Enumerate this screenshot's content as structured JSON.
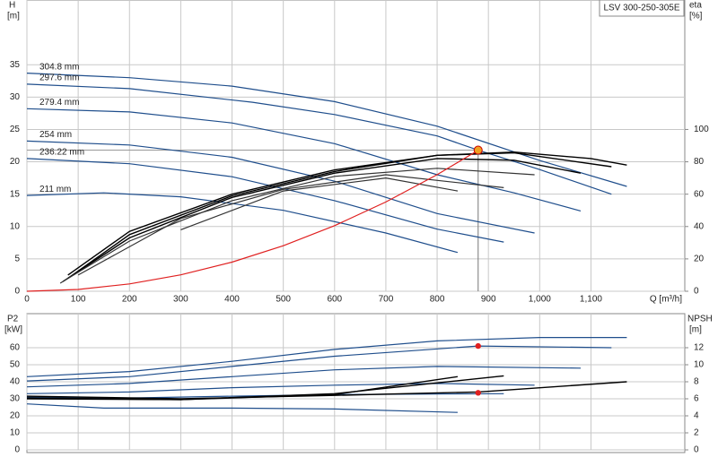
{
  "chart_data": [
    {
      "type": "line",
      "title": "LSV 300-250-305E",
      "ylabel": "H",
      "yunit": "[m]",
      "y2label": "eta",
      "y2unit": "[%]",
      "xlabel": "Q [m³/h]",
      "xlim": [
        0,
        1283
      ],
      "ylim": [
        0,
        45
      ],
      "y2lim": [
        0,
        180
      ],
      "grid": true,
      "xticks": [
        0,
        100,
        200,
        300,
        400,
        500,
        600,
        700,
        800,
        900,
        {
          "value": 1000,
          "label": "1,000"
        },
        {
          "value": 1100,
          "label": "1,100"
        }
      ],
      "yticks": [
        0,
        5,
        10,
        15,
        20,
        25,
        30,
        35
      ],
      "y2ticks": [
        0,
        20,
        40,
        60,
        80,
        100
      ],
      "series": [
        {
          "name": "304.8 mm",
          "color": "#1f4e8c",
          "x": [
            0,
            200,
            400,
            600,
            800,
            1000,
            1170
          ],
          "values": [
            33.7,
            33,
            31.7,
            29.3,
            25.5,
            20.2,
            16.2
          ]
        },
        {
          "name": "297.6 mm",
          "color": "#1f4e8c",
          "x": [
            0,
            200,
            440,
            600,
            800,
            880,
            1000,
            1140
          ],
          "values": [
            32,
            31.3,
            29.2,
            27.3,
            24,
            21.8,
            18.8,
            15
          ]
        },
        {
          "name": "279.4 mm",
          "color": "#1f4e8c",
          "x": [
            0,
            200,
            400,
            600,
            800,
            950,
            1080
          ],
          "values": [
            28.2,
            27.7,
            26,
            22.8,
            18,
            15.2,
            12.4
          ]
        },
        {
          "name": "254 mm",
          "color": "#1f4e8c",
          "x": [
            0,
            200,
            400,
            600,
            800,
            990
          ],
          "values": [
            23.2,
            22.6,
            20.7,
            17,
            12,
            9
          ]
        },
        {
          "name": "236.22 mm",
          "color": "#1f4e8c",
          "x": [
            0,
            200,
            400,
            600,
            800,
            930
          ],
          "values": [
            20.5,
            19.7,
            17.7,
            14,
            9.6,
            7.6
          ]
        },
        {
          "name": "211 mm",
          "color": "#1f4e8c",
          "x": [
            0,
            150,
            300,
            500,
            700,
            840
          ],
          "values": [
            14.8,
            15.2,
            14.6,
            12.5,
            9,
            6
          ]
        },
        {
          "color": "#000000",
          "axis": "y2",
          "x": [
            80,
            200,
            400,
            600,
            800,
            950,
            1100,
            1170
          ],
          "values": [
            10,
            37,
            60,
            75,
            84,
            86,
            82,
            78
          ]
        },
        {
          "color": "#000000",
          "axis": "y2",
          "x": [
            80,
            200,
            400,
            600,
            800,
            950,
            1140
          ],
          "values": [
            8,
            35,
            59,
            74,
            84,
            85.5,
            77
          ]
        },
        {
          "color": "#000000",
          "axis": "y2",
          "x": [
            70,
            200,
            400,
            600,
            800,
            950,
            1080
          ],
          "values": [
            6,
            33,
            58,
            73,
            82,
            81,
            73
          ]
        },
        {
          "color": "#333333",
          "axis": "y2",
          "x": [
            65,
            200,
            400,
            600,
            800,
            990
          ],
          "values": [
            5,
            31,
            56,
            71,
            76,
            72
          ]
        },
        {
          "color": "#333333",
          "axis": "y2",
          "x": [
            100,
            300,
            500,
            700,
            930
          ],
          "values": [
            10,
            45,
            63,
            72,
            64
          ]
        },
        {
          "color": "#333333",
          "axis": "y2",
          "x": [
            300,
            500,
            700,
            840
          ],
          "values": [
            38,
            62,
            70,
            62
          ]
        },
        {
          "color": "#e02020",
          "x": [
            0,
            100,
            200,
            300,
            400,
            500,
            600,
            700,
            800,
            880
          ],
          "values": [
            0,
            0.28,
            1.13,
            2.53,
            4.5,
            7.04,
            10.13,
            13.79,
            18.02,
            21.8
          ]
        }
      ],
      "operating_point": {
        "x": 880,
        "y": 21.8,
        "color": "#f0a020"
      }
    },
    {
      "type": "line",
      "ylabel": "P2",
      "yunit": "[kW]",
      "y2label": "NPSH",
      "y2unit": "[m]",
      "ylim": [
        0,
        80
      ],
      "y2lim": [
        0,
        16
      ],
      "grid": true,
      "yticks": [
        0,
        10,
        20,
        30,
        40,
        50,
        60
      ],
      "y2ticks": [
        0,
        2,
        4,
        6,
        8,
        10,
        12
      ],
      "series": [
        {
          "color": "#1f4e8c",
          "x": [
            0,
            200,
            400,
            600,
            800,
            1000,
            1170
          ],
          "values": [
            43,
            46,
            52,
            59,
            64,
            66,
            66
          ]
        },
        {
          "color": "#1f4e8c",
          "x": [
            0,
            200,
            400,
            600,
            880,
            1140
          ],
          "values": [
            40.5,
            43,
            49,
            55,
            61,
            60
          ]
        },
        {
          "color": "#1f4e8c",
          "x": [
            0,
            200,
            400,
            600,
            800,
            1080
          ],
          "values": [
            37,
            39,
            43,
            47,
            49,
            48
          ]
        },
        {
          "color": "#1f4e8c",
          "x": [
            0,
            200,
            400,
            600,
            800,
            990
          ],
          "values": [
            33,
            34,
            36.5,
            38,
            39,
            38
          ]
        },
        {
          "color": "#1f4e8c",
          "x": [
            0,
            200,
            400,
            600,
            930
          ],
          "values": [
            31,
            30.5,
            31.5,
            32.5,
            33
          ]
        },
        {
          "color": "#1f4e8c",
          "x": [
            0,
            150,
            400,
            600,
            840
          ],
          "values": [
            27,
            24.5,
            24.5,
            24,
            22
          ]
        },
        {
          "color": "#000000",
          "axis": "y2",
          "x": [
            0,
            300,
            600,
            880,
            1170
          ],
          "values": [
            6.3,
            6,
            6.4,
            6.8,
            8
          ]
        },
        {
          "color": "#000000",
          "axis": "y2",
          "x": [
            0,
            300,
            600,
            840
          ],
          "values": [
            6,
            5.9,
            6.5,
            8.6
          ]
        },
        {
          "color": "#000000",
          "axis": "y2",
          "x": [
            0,
            300,
            600,
            930
          ],
          "values": [
            6.1,
            5.9,
            6.6,
            8.7
          ]
        }
      ],
      "points": [
        {
          "x": 880,
          "y": 61,
          "color": "#e02020"
        },
        {
          "x": 880,
          "y": 6.7,
          "axis": "y2",
          "color": "#e02020"
        }
      ]
    }
  ]
}
